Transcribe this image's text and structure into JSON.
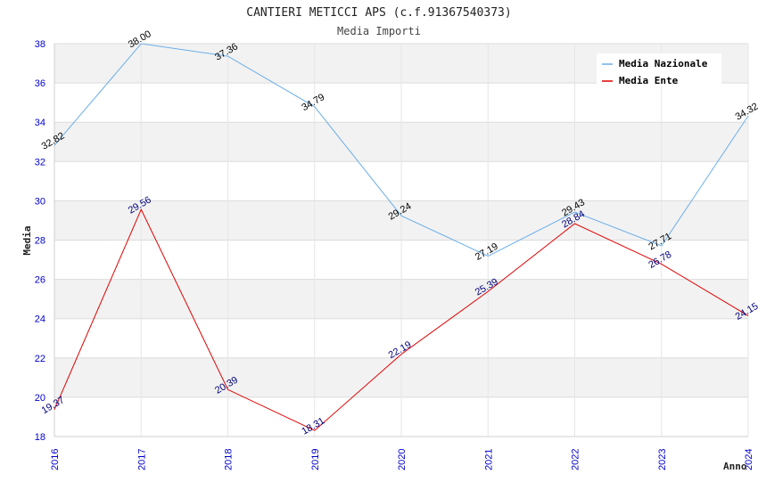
{
  "chart_data": {
    "type": "line",
    "title": "CANTIERI METICCI APS (c.f.91367540373)",
    "subtitle": "Media Importi",
    "xlabel": "Anno",
    "ylabel": "Media",
    "ylim": [
      18,
      38
    ],
    "yticks": [
      "18",
      "20",
      "22",
      "24",
      "26",
      "28",
      "30",
      "32",
      "34",
      "36",
      "38"
    ],
    "categories": [
      "2016",
      "2017",
      "2018",
      "2019",
      "2020",
      "2021",
      "2022",
      "2023",
      "2024"
    ],
    "series": [
      {
        "name": "Media Nazionale",
        "color": "#6aaee8",
        "label_color": "#000000",
        "values": [
          32.82,
          38.0,
          37.36,
          34.79,
          29.24,
          27.19,
          29.43,
          27.71,
          34.32
        ],
        "labels": [
          "32.82",
          "38.00",
          "37.36",
          "34.79",
          "29.24",
          "27.19",
          "29.43",
          "27.71",
          "34.32"
        ]
      },
      {
        "name": "Media Ente",
        "color": "#e00000",
        "label_color": "#00007a",
        "values": [
          19.37,
          29.56,
          20.39,
          18.31,
          22.19,
          25.39,
          28.84,
          26.78,
          24.15
        ],
        "labels": [
          "19.37",
          "29.56",
          "20.39",
          "18.31",
          "22.19",
          "25.39",
          "28.84",
          "26.78",
          "24.15"
        ]
      }
    ],
    "grid": "horizontal alternating bands",
    "legend_position": "top-right"
  }
}
